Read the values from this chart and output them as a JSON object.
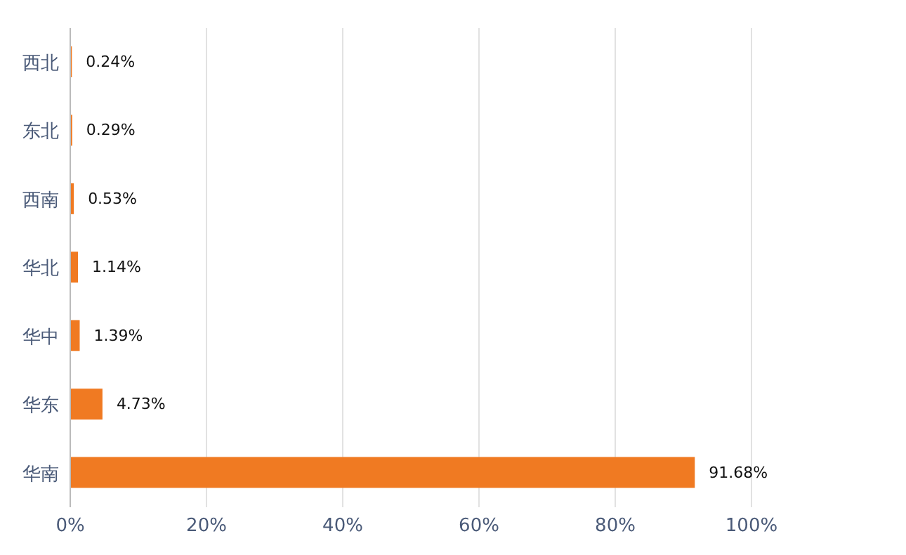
{
  "chart_data": {
    "type": "bar",
    "orientation": "horizontal",
    "categories": [
      "西北",
      "东北",
      "西南",
      "华北",
      "华中",
      "华东",
      "华南"
    ],
    "values": [
      0.24,
      0.29,
      0.53,
      1.14,
      1.39,
      4.73,
      91.68
    ],
    "value_labels": [
      "0.24%",
      "0.29%",
      "0.53%",
      "1.14%",
      "1.39%",
      "4.73%",
      "91.68%"
    ],
    "color": "#f07a22",
    "xlim": [
      0,
      100
    ],
    "xticks": [
      {
        "value": 0,
        "label": "0%"
      },
      {
        "value": 20,
        "label": "20%"
      },
      {
        "value": 40,
        "label": "40%"
      },
      {
        "value": 60,
        "label": "60%"
      },
      {
        "value": 80,
        "label": "80%"
      },
      {
        "value": 100,
        "label": "100%"
      }
    ],
    "grid": "x"
  }
}
